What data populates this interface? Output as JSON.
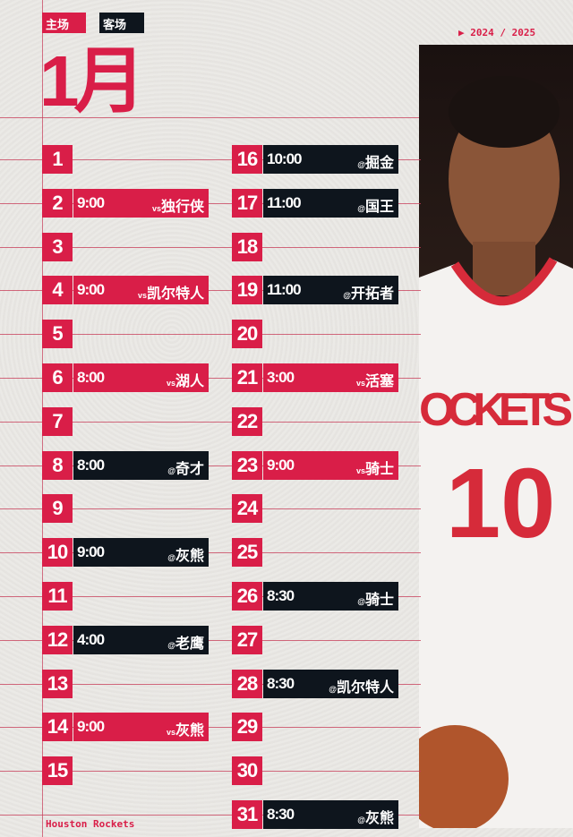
{
  "legend": {
    "home": "主场",
    "away": "客场",
    "home_color": "#d91e48",
    "away_color": "#0e151d"
  },
  "month": "1月",
  "season": "▶ 2024 / 2025",
  "footer": "Houston Rockets",
  "jersey": {
    "team": "ROCKETS",
    "number": "10"
  },
  "days": [
    {
      "day": "1"
    },
    {
      "day": "2",
      "time": "9:00",
      "prefix": "vs",
      "opp": "独行侠",
      "type": "home"
    },
    {
      "day": "3"
    },
    {
      "day": "4",
      "time": "9:00",
      "prefix": "vs",
      "opp": "凯尔特人",
      "type": "home"
    },
    {
      "day": "5"
    },
    {
      "day": "6",
      "time": "8:00",
      "prefix": "vs",
      "opp": "湖人",
      "type": "home"
    },
    {
      "day": "7"
    },
    {
      "day": "8",
      "time": "8:00",
      "prefix": "@",
      "opp": "奇才",
      "type": "away"
    },
    {
      "day": "9"
    },
    {
      "day": "10",
      "time": "9:00",
      "prefix": "@",
      "opp": "灰熊",
      "type": "away"
    },
    {
      "day": "11"
    },
    {
      "day": "12",
      "time": "4:00",
      "prefix": "@",
      "opp": "老鹰",
      "type": "away"
    },
    {
      "day": "13"
    },
    {
      "day": "14",
      "time": "9:00",
      "prefix": "vs",
      "opp": "灰熊",
      "type": "home"
    },
    {
      "day": "15"
    },
    {
      "day": "16",
      "time": "10:00",
      "prefix": "@",
      "opp": "掘金",
      "type": "away"
    },
    {
      "day": "17",
      "time": "11:00",
      "prefix": "@",
      "opp": "国王",
      "type": "away"
    },
    {
      "day": "18"
    },
    {
      "day": "19",
      "time": "11:00",
      "prefix": "@",
      "opp": "开拓者",
      "type": "away"
    },
    {
      "day": "20"
    },
    {
      "day": "21",
      "time": "3:00",
      "prefix": "vs",
      "opp": "活塞",
      "type": "home"
    },
    {
      "day": "22"
    },
    {
      "day": "23",
      "time": "9:00",
      "prefix": "vs",
      "opp": "骑士",
      "type": "home"
    },
    {
      "day": "24"
    },
    {
      "day": "25"
    },
    {
      "day": "26",
      "time": "8:30",
      "prefix": "@",
      "opp": "骑士",
      "type": "away"
    },
    {
      "day": "27"
    },
    {
      "day": "28",
      "time": "8:30",
      "prefix": "@",
      "opp": "凯尔特人",
      "type": "away"
    },
    {
      "day": "29"
    },
    {
      "day": "30"
    },
    {
      "day": "31",
      "time": "8:30",
      "prefix": "@",
      "opp": "灰熊",
      "type": "away"
    }
  ]
}
